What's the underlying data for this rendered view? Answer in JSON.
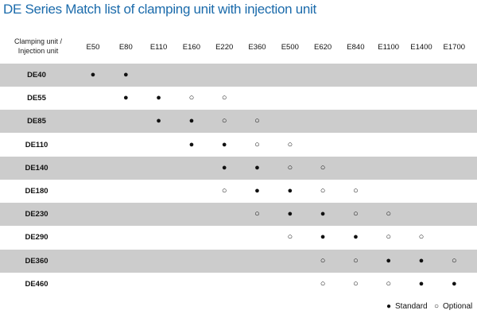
{
  "header": {
    "title": "DE Series Match list of clamping unit with injection unit"
  },
  "table": {
    "corner": "Clamping unit /\nInjection unit",
    "columns": [
      "E50",
      "E80",
      "E110",
      "E160",
      "E220",
      "E360",
      "E500",
      "E620",
      "E840",
      "E1100",
      "E1400",
      "E1700"
    ],
    "rows": [
      {
        "label": "DE40",
        "cells": [
          "●",
          "●",
          null,
          null,
          null,
          null,
          null,
          null,
          null,
          null,
          null,
          null
        ]
      },
      {
        "label": "DE55",
        "cells": [
          null,
          "●",
          "●",
          "○",
          "○",
          null,
          null,
          null,
          null,
          null,
          null,
          null
        ]
      },
      {
        "label": "DE85",
        "cells": [
          null,
          null,
          "●",
          "●",
          "○",
          "○",
          null,
          null,
          null,
          null,
          null,
          null
        ]
      },
      {
        "label": "DE110",
        "cells": [
          null,
          null,
          null,
          "●",
          "●",
          "○",
          "○",
          null,
          null,
          null,
          null,
          null
        ]
      },
      {
        "label": "DE140",
        "cells": [
          null,
          null,
          null,
          null,
          "●",
          "●",
          "○",
          "○",
          null,
          null,
          null,
          null
        ]
      },
      {
        "label": "DE180",
        "cells": [
          null,
          null,
          null,
          null,
          "○",
          "●",
          "●",
          "○",
          "○",
          null,
          null,
          null
        ]
      },
      {
        "label": "DE230",
        "cells": [
          null,
          null,
          null,
          null,
          null,
          "○",
          "●",
          "●",
          "○",
          "○",
          null,
          null
        ]
      },
      {
        "label": "DE290",
        "cells": [
          null,
          null,
          null,
          null,
          null,
          null,
          "○",
          "●",
          "●",
          "○",
          "○",
          null
        ]
      },
      {
        "label": "DE360",
        "cells": [
          null,
          null,
          null,
          null,
          null,
          null,
          null,
          "○",
          "○",
          "●",
          "●",
          "○"
        ]
      },
      {
        "label": "DE460",
        "cells": [
          null,
          null,
          null,
          null,
          null,
          null,
          null,
          "○",
          "○",
          "○",
          "●",
          "●"
        ]
      }
    ]
  },
  "legend": [
    {
      "symbol": "●",
      "label": "Standard"
    },
    {
      "symbol": "○",
      "label": "Optional"
    }
  ]
}
